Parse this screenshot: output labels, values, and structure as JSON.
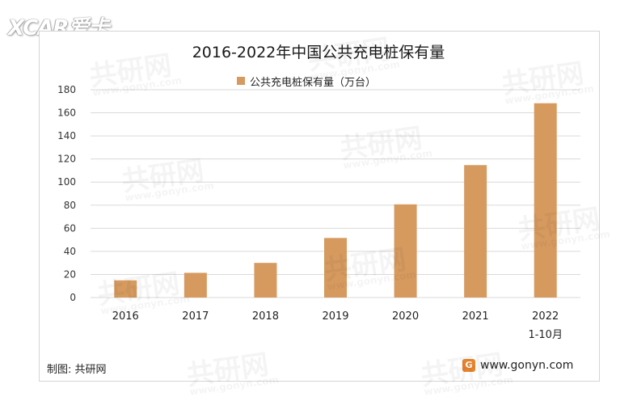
{
  "brand": {
    "name": "XCAR爱卡"
  },
  "chart_data": {
    "type": "bar",
    "title": "2016-2022年中国公共充电桩保有量",
    "categories": [
      "2016",
      "2017",
      "2018",
      "2019",
      "2020",
      "2021",
      "2022"
    ],
    "category_sublabels": [
      "",
      "",
      "",
      "",
      "",
      "",
      "1-10月"
    ],
    "series": [
      {
        "name": "公共充电桩保有量（万台）",
        "values": [
          14.9,
          21.4,
          30.0,
          51.6,
          80.7,
          114.7,
          168.3
        ]
      }
    ],
    "ylim": [
      0,
      180
    ],
    "yticks": [
      0,
      20,
      40,
      60,
      80,
      100,
      120,
      140,
      160,
      180
    ],
    "grid": true,
    "legend_position": "top-center",
    "bar_color": "#d69a5f",
    "grid_color": "#d9d9d9"
  },
  "footer": {
    "source": "制图: 共研网",
    "logo_letter": "G",
    "website": "www.gonyn.com"
  },
  "watermark": {
    "text": "共研网",
    "url": "www.gonyn.com"
  }
}
